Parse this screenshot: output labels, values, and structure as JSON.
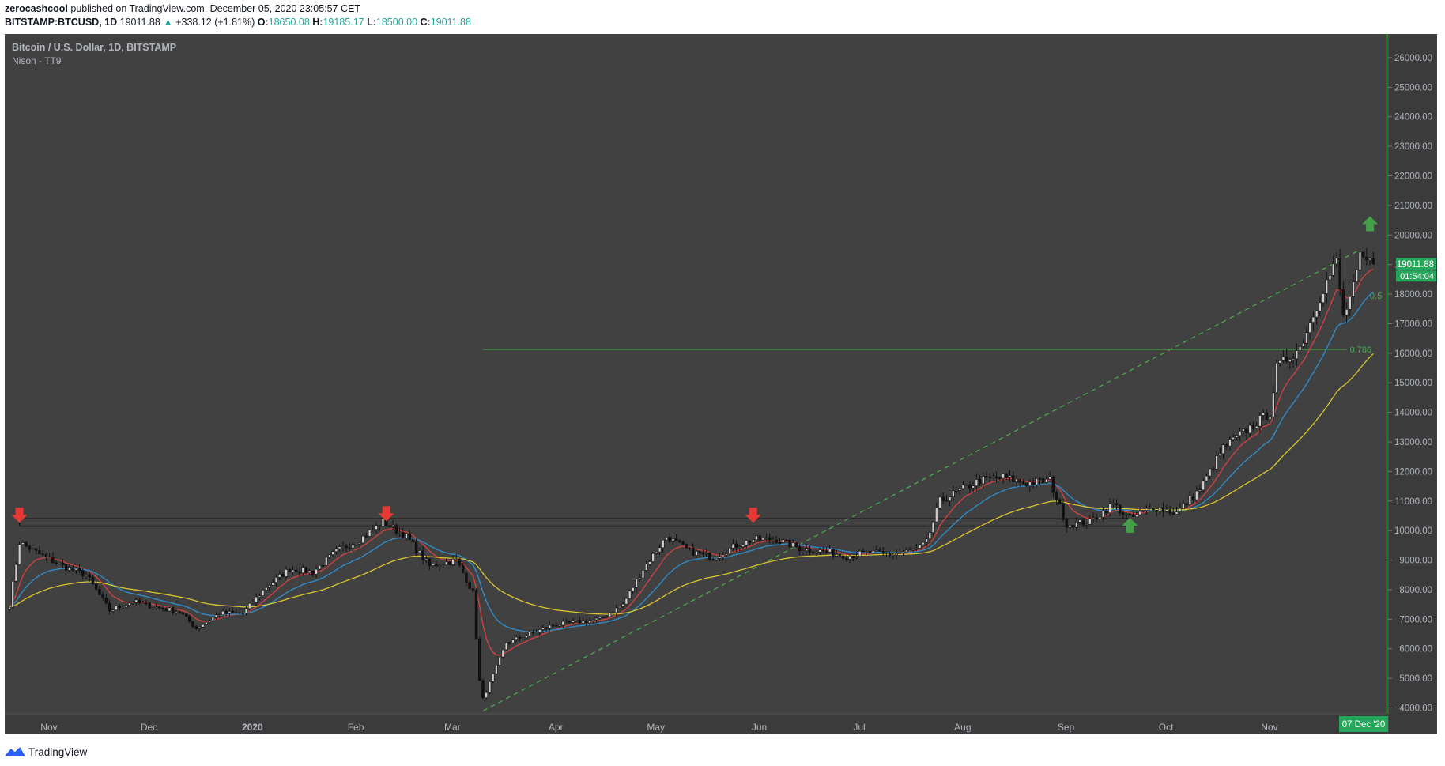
{
  "header": {
    "author": "zerocashcool",
    "published_text": "published on TradingView.com, December 05, 2020 23:05:57 CET",
    "symbol": "BITSTAMP:BTCUSD, 1D",
    "last": "19011.88",
    "change": "+338.12 (+1.81%)",
    "o_label": "O:",
    "o_val": "18650.08",
    "h_label": "H:",
    "h_val": "19185.17",
    "l_label": "L:",
    "l_val": "18500.00",
    "c_label": "C:",
    "c_val": "19011.88"
  },
  "legend": {
    "title": "Bitcoin / U.S. Dollar, 1D, BITSTAMP",
    "indicator": "Nison - TT9"
  },
  "footer": {
    "brand": "TradingView"
  },
  "colors": {
    "pane_bg": "#414141",
    "axis_bg": "#3b3b3b",
    "text_light": "#b2b5be",
    "candle": "#111111",
    "ma_fast": "#d64242",
    "ma_mid": "#2f8fd0",
    "ma_slow": "#d9c531",
    "fib_green": "#4caf50",
    "arrow_down": "#e53935",
    "arrow_up": "#43a047",
    "price_badge": "#26a65b"
  },
  "chart_data": {
    "type": "candlestick",
    "interval": "1D",
    "ylim": [
      3800,
      26800
    ],
    "y_ticks": [
      "4000.00",
      "5000.00",
      "6000.00",
      "7000.00",
      "8000.00",
      "9000.00",
      "10000.00",
      "11000.00",
      "12000.00",
      "13000.00",
      "14000.00",
      "15000.00",
      "16000.00",
      "17000.00",
      "18000.00",
      "19000.00",
      "20000.00",
      "21000.00",
      "22000.00",
      "23000.00",
      "24000.00",
      "25000.00",
      "26000.00"
    ],
    "x_labels": [
      "Nov",
      "Dec",
      "2020",
      "Feb",
      "Mar",
      "Apr",
      "May",
      "Jun",
      "Jul",
      "Aug",
      "Sep",
      "Oct",
      "Nov"
    ],
    "date_range": [
      "2019-10-23",
      "2020-12-08"
    ],
    "cursor_label": "07 Dec '20",
    "current_price_label": "19011.88",
    "countdown_label": "01:54:04",
    "price_path": [
      [
        "2019-10-23",
        7500
      ],
      [
        "2019-10-26",
        9600
      ],
      [
        "2019-11-01",
        9200
      ],
      [
        "2019-11-08",
        8800
      ],
      [
        "2019-11-15",
        8500
      ],
      [
        "2019-11-22",
        7300
      ],
      [
        "2019-11-29",
        7600
      ],
      [
        "2019-12-06",
        7400
      ],
      [
        "2019-12-13",
        7250
      ],
      [
        "2019-12-18",
        6700
      ],
      [
        "2019-12-25",
        7200
      ],
      [
        "2020-01-01",
        7200
      ],
      [
        "2020-01-08",
        8100
      ],
      [
        "2020-01-15",
        8700
      ],
      [
        "2020-01-22",
        8600
      ],
      [
        "2020-01-29",
        9300
      ],
      [
        "2020-02-05",
        9700
      ],
      [
        "2020-02-12",
        10300
      ],
      [
        "2020-02-19",
        9800
      ],
      [
        "2020-02-26",
        8800
      ],
      [
        "2020-03-05",
        9000
      ],
      [
        "2020-03-10",
        7900
      ],
      [
        "2020-03-12",
        4900
      ],
      [
        "2020-03-13",
        4300
      ],
      [
        "2020-03-20",
        6200
      ],
      [
        "2020-03-27",
        6500
      ],
      [
        "2020-04-03",
        6800
      ],
      [
        "2020-04-10",
        6900
      ],
      [
        "2020-04-17",
        7000
      ],
      [
        "2020-04-24",
        7500
      ],
      [
        "2020-04-30",
        8700
      ],
      [
        "2020-05-07",
        9800
      ],
      [
        "2020-05-14",
        9300
      ],
      [
        "2020-05-21",
        9100
      ],
      [
        "2020-05-28",
        9500
      ],
      [
        "2020-06-02",
        9700
      ],
      [
        "2020-06-09",
        9700
      ],
      [
        "2020-06-16",
        9400
      ],
      [
        "2020-06-23",
        9300
      ],
      [
        "2020-06-30",
        9150
      ],
      [
        "2020-07-07",
        9250
      ],
      [
        "2020-07-14",
        9200
      ],
      [
        "2020-07-21",
        9350
      ],
      [
        "2020-07-24",
        9600
      ],
      [
        "2020-07-28",
        11000
      ],
      [
        "2020-08-02",
        11300
      ],
      [
        "2020-08-09",
        11700
      ],
      [
        "2020-08-16",
        11800
      ],
      [
        "2020-08-23",
        11600
      ],
      [
        "2020-08-30",
        11700
      ],
      [
        "2020-09-04",
        10200
      ],
      [
        "2020-09-11",
        10300
      ],
      [
        "2020-09-18",
        10900
      ],
      [
        "2020-09-23",
        10400
      ],
      [
        "2020-09-30",
        10800
      ],
      [
        "2020-10-07",
        10600
      ],
      [
        "2020-10-14",
        11400
      ],
      [
        "2020-10-21",
        12800
      ],
      [
        "2020-10-28",
        13400
      ],
      [
        "2020-11-04",
        14000
      ],
      [
        "2020-11-06",
        15500
      ],
      [
        "2020-11-13",
        16200
      ],
      [
        "2020-11-20",
        18200
      ],
      [
        "2020-11-24",
        19100
      ],
      [
        "2020-11-26",
        17200
      ],
      [
        "2020-11-29",
        18200
      ],
      [
        "2020-12-01",
        19200
      ],
      [
        "2020-12-05",
        19011.88
      ]
    ],
    "overlays": {
      "fib_dashed_line": {
        "from": [
          "2020-03-13",
          3900
        ],
        "to": [
          "2020-12-01",
          19500
        ]
      },
      "fib_level_line": {
        "from": [
          "2020-03-13",
          16130
        ],
        "to": [
          "2020-11-27",
          16130
        ],
        "label": "0.786"
      },
      "fib_label_05": {
        "at": [
          "2020-12-03",
          17950
        ],
        "label": "0.5"
      },
      "resistance_box": {
        "from": "2019-10-26",
        "to": "2020-09-23",
        "top": 10400,
        "bottom": 10150
      },
      "arrows_down": [
        [
          "2019-10-26",
          10800
        ],
        [
          "2020-02-13",
          10850
        ],
        [
          "2020-06-02",
          10800
        ]
      ],
      "arrows_up": [
        [
          "2020-09-23",
          9900
        ],
        [
          "2020-12-04",
          20100
        ]
      ]
    }
  }
}
